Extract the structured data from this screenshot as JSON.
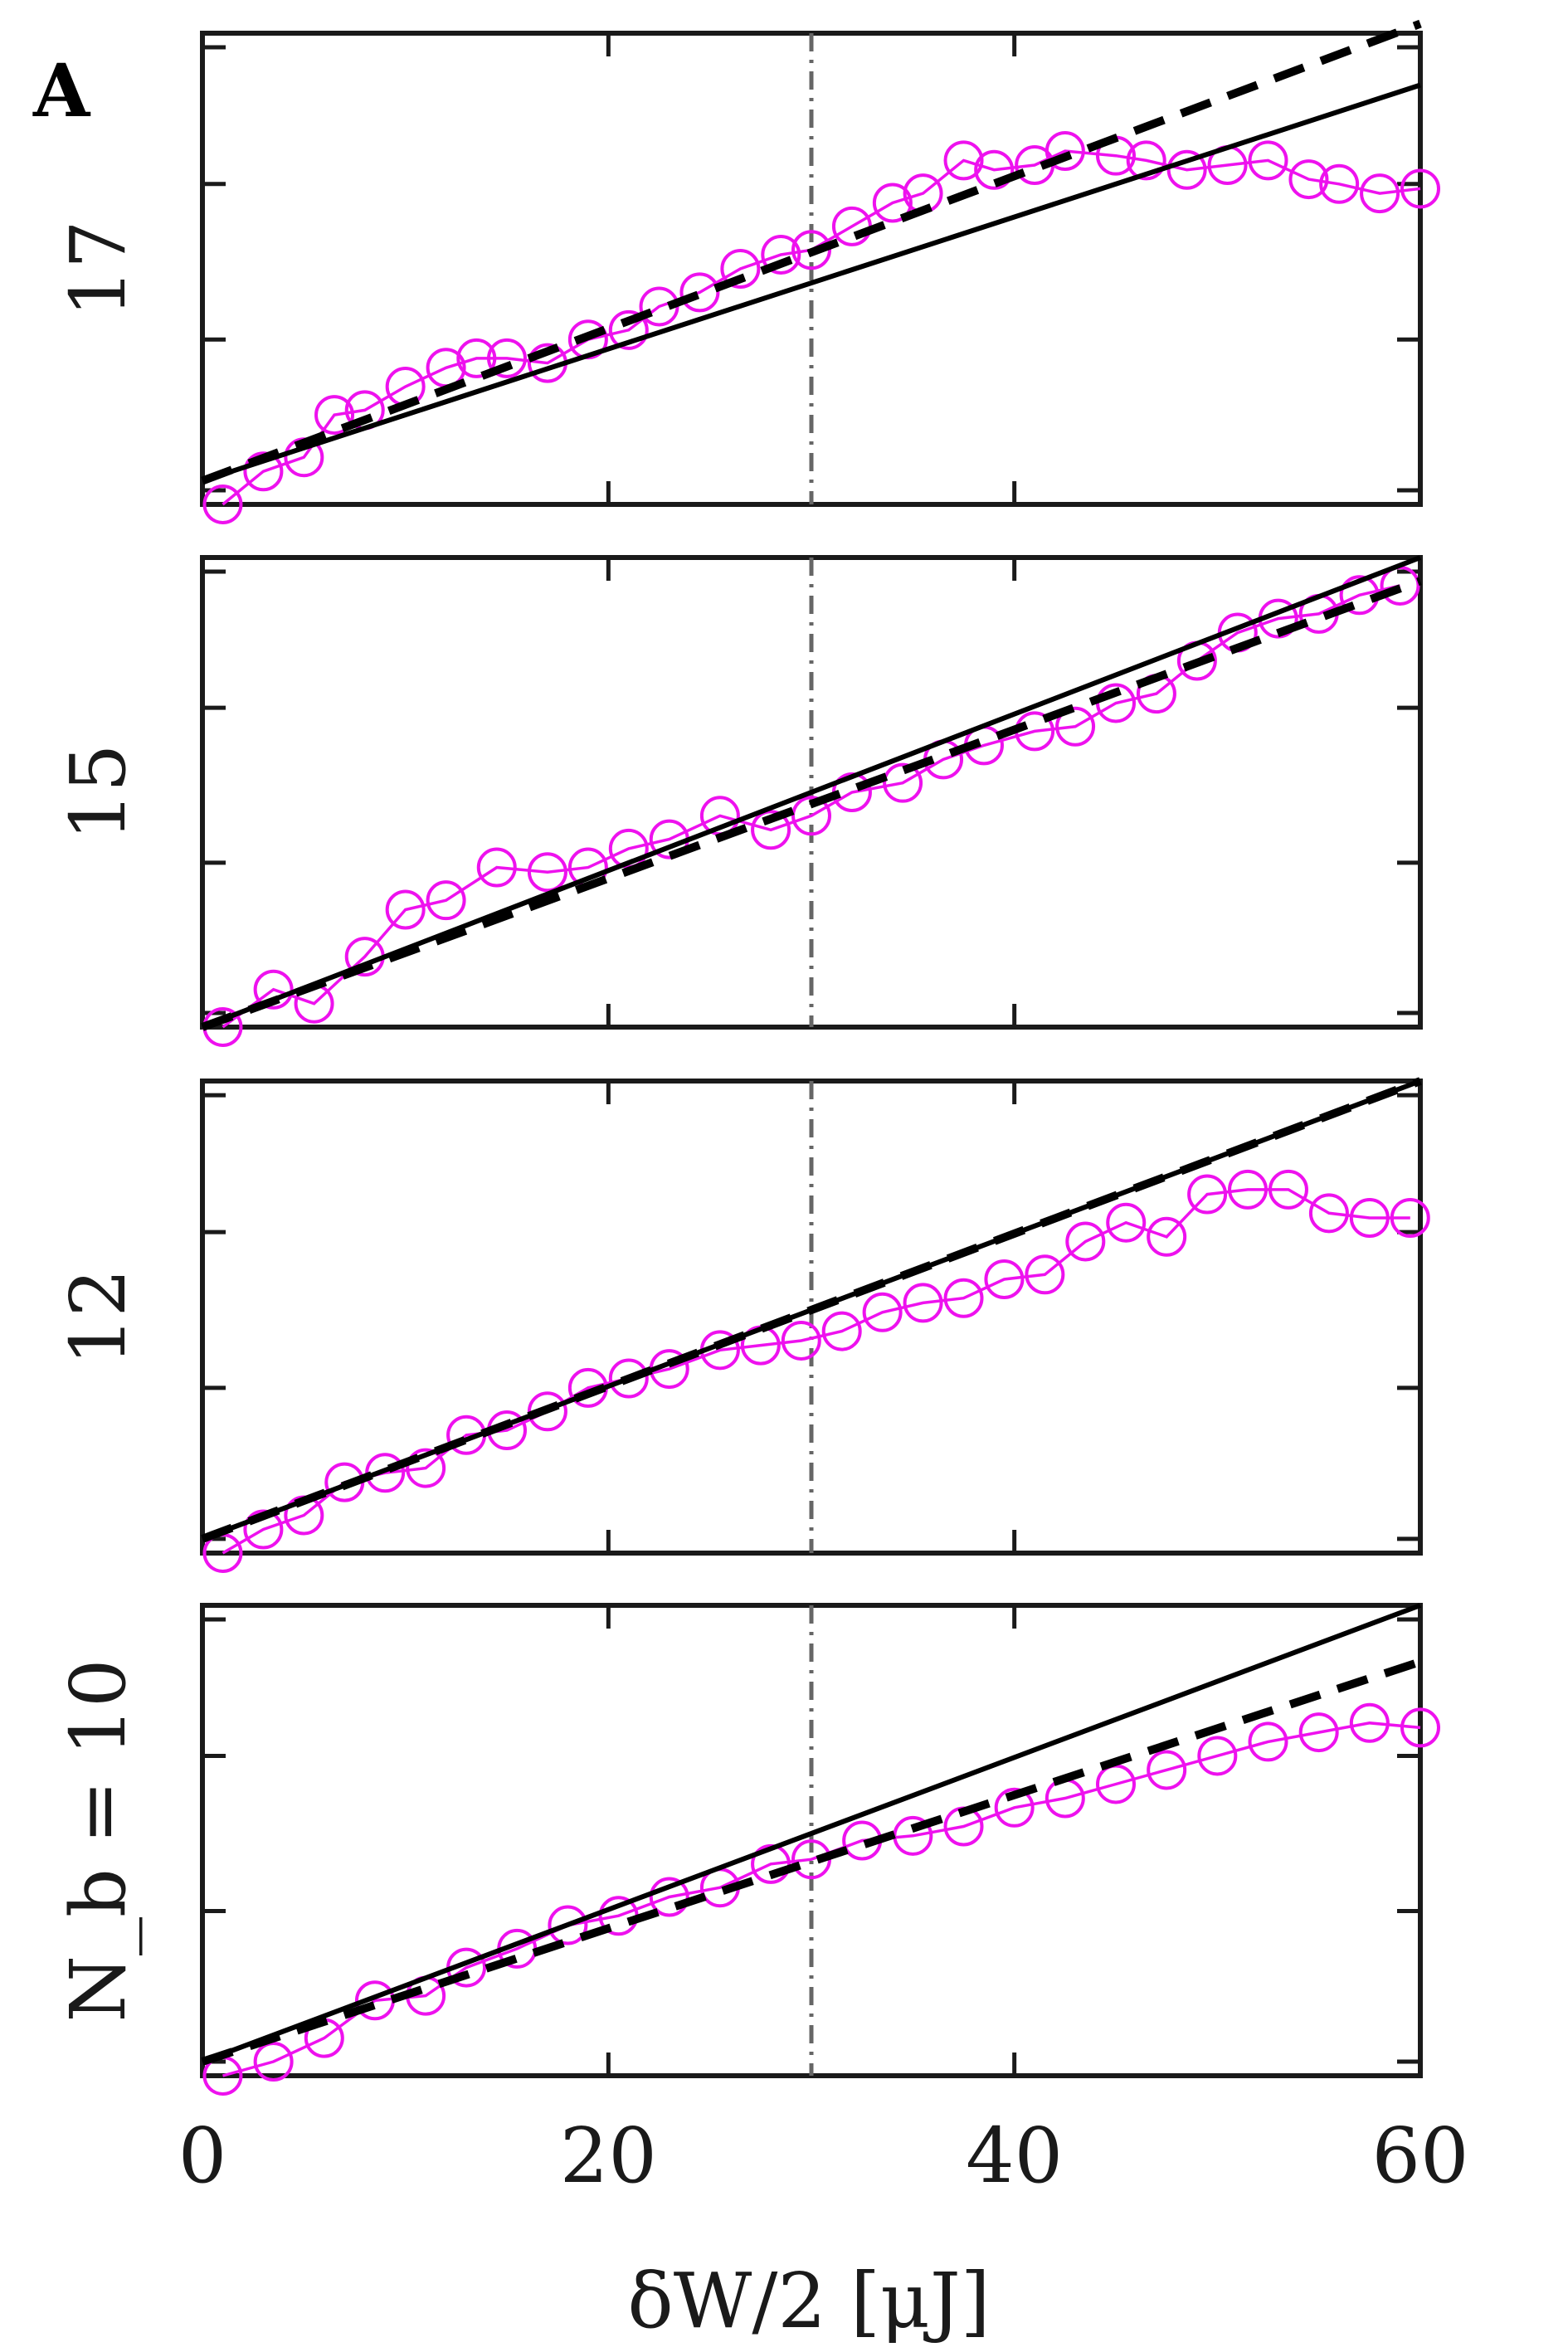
{
  "figure": {
    "panel_letter": "A",
    "xlabel": "δW/2 [μJ]",
    "x_ticks": [
      "0",
      "20",
      "40",
      "60"
    ],
    "colors": {
      "data": "#ee11ee",
      "axis": "#1a1a1a",
      "fit": "#000000",
      "marker_line": "#666666"
    }
  },
  "chart_data": [
    {
      "type": "line",
      "title": "",
      "ylabel": "17",
      "xlim": [
        0,
        60
      ],
      "ylim": [
        0,
        1
      ],
      "vline_x": 30,
      "series": [
        {
          "style": "markers-line",
          "x": [
            1,
            3,
            5,
            6.5,
            8,
            10,
            12,
            13.5,
            15,
            17,
            19,
            21,
            22.5,
            24.5,
            26.5,
            28.5,
            30,
            32,
            34,
            35.5,
            37.5,
            39,
            41,
            42.5,
            45,
            46.5,
            48.5,
            50.5,
            52.5,
            54.5,
            56,
            58,
            60
          ],
          "values": [
            0.0,
            0.07,
            0.1,
            0.19,
            0.2,
            0.25,
            0.29,
            0.31,
            0.31,
            0.3,
            0.35,
            0.37,
            0.42,
            0.45,
            0.5,
            0.53,
            0.54,
            0.59,
            0.64,
            0.66,
            0.73,
            0.71,
            0.72,
            0.75,
            0.74,
            0.73,
            0.71,
            0.72,
            0.73,
            0.69,
            0.68,
            0.66,
            0.67
          ]
        },
        {
          "style": "solid",
          "x": [
            0,
            60
          ],
          "values": [
            0.05,
            0.89
          ]
        },
        {
          "style": "dashed",
          "x": [
            0,
            60
          ],
          "values": [
            0.05,
            1.02
          ]
        }
      ]
    },
    {
      "type": "line",
      "title": "",
      "ylabel": "15",
      "xlim": [
        0,
        60
      ],
      "ylim": [
        0,
        1
      ],
      "vline_x": 30,
      "series": [
        {
          "style": "markers-line",
          "x": [
            1,
            3.5,
            5.5,
            8,
            10,
            12,
            14.5,
            17,
            19,
            21,
            23,
            25.5,
            28,
            30,
            32,
            34.5,
            36.5,
            38.5,
            41,
            43,
            45,
            47,
            49,
            51,
            53,
            55,
            57,
            59
          ],
          "values": [
            0.0,
            0.08,
            0.05,
            0.15,
            0.25,
            0.27,
            0.34,
            0.33,
            0.34,
            0.38,
            0.4,
            0.45,
            0.42,
            0.45,
            0.5,
            0.52,
            0.57,
            0.6,
            0.63,
            0.64,
            0.69,
            0.71,
            0.78,
            0.84,
            0.87,
            0.88,
            0.92,
            0.94
          ]
        },
        {
          "style": "solid",
          "x": [
            0,
            60
          ],
          "values": [
            0.0,
            1.0
          ]
        },
        {
          "style": "dashed",
          "x": [
            0,
            60
          ],
          "values": [
            0.0,
            0.95
          ]
        }
      ]
    },
    {
      "type": "line",
      "title": "",
      "ylabel": "12",
      "xlim": [
        0,
        60
      ],
      "ylim": [
        0,
        1
      ],
      "vline_x": 30,
      "series": [
        {
          "style": "markers-line",
          "x": [
            1,
            3,
            5,
            7,
            9,
            11,
            13,
            15,
            17,
            19,
            21,
            23,
            25.5,
            27.5,
            29.5,
            31.5,
            33.5,
            35.5,
            37.5,
            39.5,
            41.5,
            43.5,
            45.5,
            47.5,
            49.5,
            51.5,
            53.5,
            55.5,
            57.5,
            59.5
          ],
          "values": [
            0.0,
            0.05,
            0.08,
            0.15,
            0.17,
            0.18,
            0.25,
            0.26,
            0.3,
            0.35,
            0.37,
            0.39,
            0.43,
            0.44,
            0.45,
            0.47,
            0.51,
            0.53,
            0.54,
            0.58,
            0.59,
            0.66,
            0.7,
            0.67,
            0.76,
            0.77,
            0.77,
            0.72,
            0.71,
            0.71
          ]
        },
        {
          "style": "solid",
          "x": [
            0,
            60
          ],
          "values": [
            0.03,
            1.0
          ]
        },
        {
          "style": "dashed",
          "x": [
            0,
            60
          ],
          "values": [
            0.03,
            1.0
          ]
        }
      ]
    },
    {
      "type": "line",
      "title": "",
      "ylabel": "N_b = 10",
      "xlim": [
        0,
        60
      ],
      "ylim": [
        0,
        1
      ],
      "vline_x": 30,
      "series": [
        {
          "style": "markers-line",
          "x": [
            1,
            3.5,
            6,
            8.5,
            11,
            13,
            15.5,
            18,
            20.5,
            23,
            25.5,
            28,
            30,
            32.5,
            35,
            37.5,
            40,
            42.5,
            45,
            47.5,
            50,
            52.5,
            55,
            57.5,
            60
          ],
          "values": [
            0.0,
            0.03,
            0.08,
            0.16,
            0.17,
            0.23,
            0.27,
            0.32,
            0.34,
            0.38,
            0.4,
            0.45,
            0.46,
            0.5,
            0.51,
            0.53,
            0.57,
            0.59,
            0.62,
            0.65,
            0.68,
            0.71,
            0.73,
            0.75,
            0.74
          ]
        },
        {
          "style": "solid",
          "x": [
            0,
            60
          ],
          "values": [
            0.03,
            1.0
          ]
        },
        {
          "style": "dashed",
          "x": [
            0,
            60
          ],
          "values": [
            0.03,
            0.88
          ]
        }
      ]
    }
  ]
}
